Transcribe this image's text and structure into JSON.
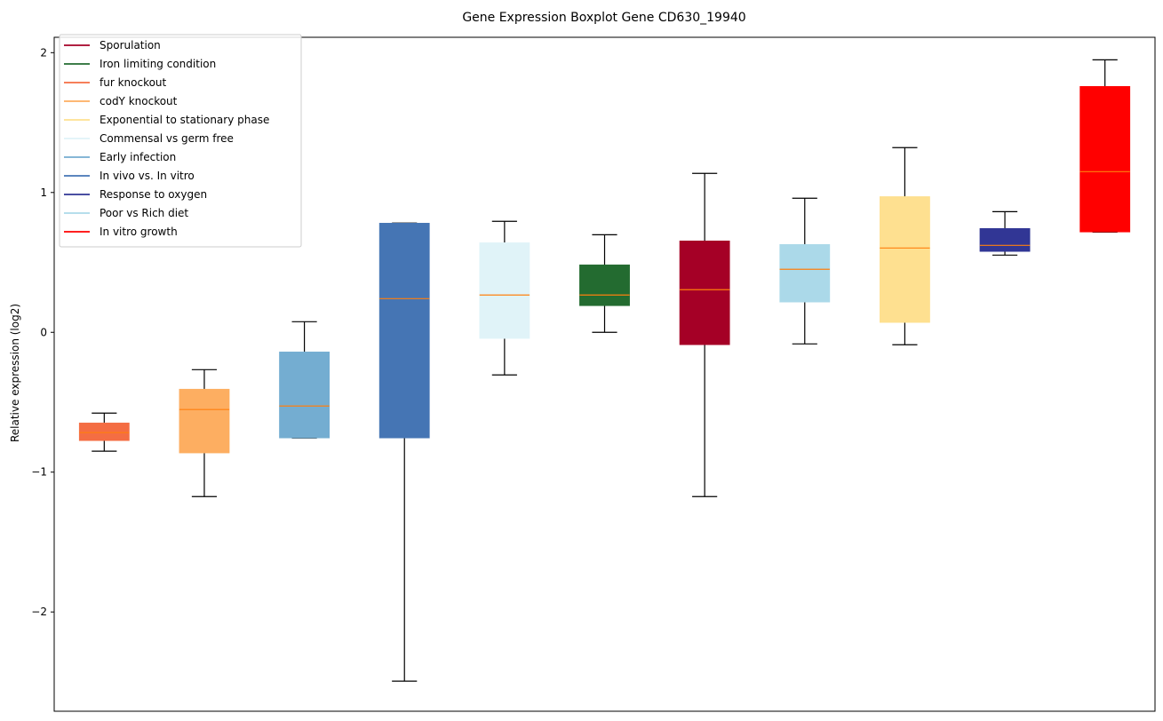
{
  "chart_data": {
    "type": "boxplot",
    "title": "Gene Expression Boxplot Gene CD630_19940",
    "xlabel": "",
    "ylabel": "Relative expression (log2)",
    "ylim": [
      -2.71,
      2.11
    ],
    "xlim": [
      0.5,
      11.5
    ],
    "grid": false,
    "legend_position": "top-left",
    "yticks": [
      {
        "value": 2,
        "label": "2"
      },
      {
        "value": 1,
        "label": "1"
      },
      {
        "value": 0,
        "label": "0"
      },
      {
        "value": -1,
        "label": "−1"
      },
      {
        "value": -2,
        "label": "−2"
      }
    ],
    "median_color": "#ff7f0e",
    "whisker_color": "#000000",
    "legend": [
      {
        "label": "Sporulation",
        "color": "#a50026"
      },
      {
        "label": "Iron limiting condition",
        "color": "#236b30"
      },
      {
        "label": "fur knockout",
        "color": "#f46d43"
      },
      {
        "label": "codY knockout",
        "color": "#fdae61"
      },
      {
        "label": "Exponential to stationary phase",
        "color": "#fee090"
      },
      {
        "label": "Commensal vs germ free",
        "color": "#e0f3f8"
      },
      {
        "label": "Early infection",
        "color": "#74add1"
      },
      {
        "label": "In vivo vs. In vitro",
        "color": "#4575b4"
      },
      {
        "label": "Response to oxygen",
        "color": "#313695"
      },
      {
        "label": "Poor vs Rich diet",
        "color": "#abd9e9"
      },
      {
        "label": "In vitro growth",
        "color": "#ff0000"
      }
    ],
    "boxes": [
      {
        "name": "fur knockout",
        "color": "#f46d43",
        "whisker_low": -0.85,
        "q1": -0.775,
        "median": -0.717,
        "q3": -0.648,
        "whisker_high": -0.578
      },
      {
        "name": "codY knockout",
        "color": "#fdae61",
        "whisker_low": -1.175,
        "q1": -0.863,
        "median": -0.552,
        "q3": -0.406,
        "whisker_high": -0.267
      },
      {
        "name": "Early infection",
        "color": "#74add1",
        "whisker_low": -0.756,
        "q1": -0.756,
        "median": -0.527,
        "q3": -0.14,
        "whisker_high": 0.076
      },
      {
        "name": "In vivo vs. In vitro",
        "color": "#4575b4",
        "whisker_low": -2.495,
        "q1": -0.756,
        "median": 0.241,
        "q3": 0.781,
        "whisker_high": 0.781
      },
      {
        "name": "Commensal vs germ free",
        "color": "#e0f3f8",
        "whisker_low": -0.305,
        "q1": -0.044,
        "median": 0.267,
        "q3": 0.641,
        "whisker_high": 0.794
      },
      {
        "name": "Iron limiting condition",
        "color": "#236b30",
        "whisker_low": 0.0,
        "q1": 0.19,
        "median": 0.267,
        "q3": 0.483,
        "whisker_high": 0.698
      },
      {
        "name": "Sporulation",
        "color": "#a50026",
        "whisker_low": -1.175,
        "q1": -0.089,
        "median": 0.305,
        "q3": 0.654,
        "whisker_high": 1.137
      },
      {
        "name": "Poor vs Rich diet",
        "color": "#abd9e9",
        "whisker_low": -0.083,
        "q1": 0.216,
        "median": 0.451,
        "q3": 0.629,
        "whisker_high": 0.959
      },
      {
        "name": "Exponential to stationary phase",
        "color": "#fee090",
        "whisker_low": -0.089,
        "q1": 0.07,
        "median": 0.603,
        "q3": 0.971,
        "whisker_high": 1.321
      },
      {
        "name": "Response to oxygen",
        "color": "#313695",
        "whisker_low": 0.552,
        "q1": 0.578,
        "median": 0.622,
        "q3": 0.743,
        "whisker_high": 0.863
      },
      {
        "name": "In vitro growth",
        "color": "#ff0000",
        "whisker_low": 0.717,
        "q1": 0.717,
        "median": 1.149,
        "q3": 1.759,
        "whisker_high": 1.949
      }
    ]
  }
}
